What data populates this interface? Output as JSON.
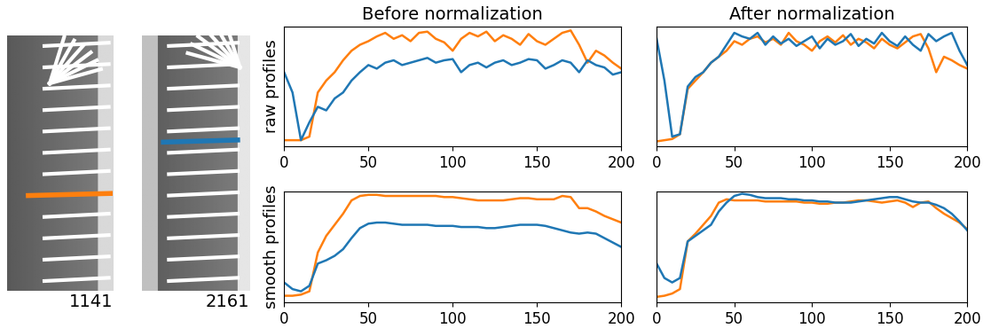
{
  "images": [
    {
      "label": "1141",
      "color": "#ff7f0e"
    },
    {
      "label": "2161",
      "color": "#1f77b4"
    }
  ],
  "chart_data": [
    {
      "type": "line",
      "title": "Before normalization",
      "y_label": "raw profiles",
      "x": [
        0,
        5,
        10,
        15,
        20,
        25,
        30,
        35,
        40,
        45,
        50,
        55,
        60,
        65,
        70,
        75,
        80,
        85,
        90,
        95,
        100,
        105,
        110,
        115,
        120,
        125,
        130,
        135,
        140,
        145,
        150,
        155,
        160,
        165,
        170,
        175,
        180,
        185,
        190,
        195,
        200
      ],
      "xlim": [
        0,
        200
      ],
      "xticks": [
        0,
        50,
        100,
        150,
        200
      ],
      "ylim": [
        0,
        1
      ],
      "tick_labels": "x",
      "series": [
        {
          "color": "#ff7f0e",
          "values": [
            0.05,
            0.05,
            0.05,
            0.08,
            0.45,
            0.55,
            0.62,
            0.72,
            0.8,
            0.85,
            0.88,
            0.92,
            0.95,
            0.9,
            0.93,
            0.88,
            0.95,
            0.96,
            0.9,
            0.87,
            0.8,
            0.9,
            0.95,
            0.92,
            0.96,
            0.88,
            0.93,
            0.9,
            0.85,
            0.94,
            0.88,
            0.85,
            0.9,
            0.95,
            0.97,
            0.85,
            0.7,
            0.8,
            0.76,
            0.7,
            0.65
          ]
        },
        {
          "color": "#1f77b4",
          "values": [
            0.62,
            0.45,
            0.05,
            0.2,
            0.33,
            0.3,
            0.4,
            0.45,
            0.55,
            0.62,
            0.68,
            0.65,
            0.7,
            0.72,
            0.68,
            0.7,
            0.72,
            0.74,
            0.7,
            0.72,
            0.73,
            0.62,
            0.68,
            0.7,
            0.66,
            0.7,
            0.72,
            0.68,
            0.7,
            0.73,
            0.72,
            0.65,
            0.68,
            0.72,
            0.7,
            0.62,
            0.72,
            0.68,
            0.66,
            0.6,
            0.62
          ]
        }
      ]
    },
    {
      "type": "line",
      "title": "After normalization",
      "x": [
        0,
        5,
        10,
        15,
        20,
        25,
        30,
        35,
        40,
        45,
        50,
        55,
        60,
        65,
        70,
        75,
        80,
        85,
        90,
        95,
        100,
        105,
        110,
        115,
        120,
        125,
        130,
        135,
        140,
        145,
        150,
        155,
        160,
        165,
        170,
        175,
        180,
        185,
        190,
        195,
        200
      ],
      "xlim": [
        0,
        200
      ],
      "xticks": [
        0,
        50,
        100,
        150,
        200
      ],
      "ylim": [
        0,
        1
      ],
      "tick_labels": "x",
      "series": [
        {
          "color": "#ff7f0e",
          "values": [
            0.04,
            0.05,
            0.06,
            0.1,
            0.48,
            0.55,
            0.62,
            0.7,
            0.75,
            0.8,
            0.88,
            0.85,
            0.9,
            0.92,
            0.87,
            0.9,
            0.85,
            0.95,
            0.88,
            0.85,
            0.8,
            0.88,
            0.92,
            0.87,
            0.93,
            0.85,
            0.9,
            0.87,
            0.82,
            0.9,
            0.85,
            0.82,
            0.87,
            0.92,
            0.94,
            0.82,
            0.62,
            0.75,
            0.72,
            0.68,
            0.65
          ]
        },
        {
          "color": "#1f77b4",
          "values": [
            0.9,
            0.55,
            0.08,
            0.1,
            0.5,
            0.58,
            0.62,
            0.7,
            0.75,
            0.85,
            0.95,
            0.92,
            0.9,
            0.95,
            0.85,
            0.92,
            0.86,
            0.9,
            0.84,
            0.88,
            0.92,
            0.82,
            0.9,
            0.85,
            0.88,
            0.94,
            0.84,
            0.9,
            0.86,
            0.95,
            0.88,
            0.84,
            0.92,
            0.85,
            0.8,
            0.94,
            0.88,
            0.92,
            0.95,
            0.8,
            0.68
          ]
        }
      ]
    },
    {
      "type": "line",
      "y_label": "smooth profiles",
      "x": [
        0,
        5,
        10,
        15,
        20,
        25,
        30,
        35,
        40,
        45,
        50,
        55,
        60,
        65,
        70,
        75,
        80,
        85,
        90,
        95,
        100,
        105,
        110,
        115,
        120,
        125,
        130,
        135,
        140,
        145,
        150,
        155,
        160,
        165,
        170,
        175,
        180,
        185,
        190,
        195,
        200
      ],
      "xlim": [
        0,
        200
      ],
      "xticks": [
        0,
        50,
        100,
        150,
        200
      ],
      "ylim": [
        0,
        1
      ],
      "tick_labels": "x",
      "series": [
        {
          "color": "#ff7f0e",
          "values": [
            0.06,
            0.06,
            0.07,
            0.1,
            0.45,
            0.6,
            0.7,
            0.8,
            0.92,
            0.96,
            0.97,
            0.97,
            0.96,
            0.96,
            0.96,
            0.96,
            0.96,
            0.96,
            0.96,
            0.95,
            0.95,
            0.94,
            0.93,
            0.92,
            0.92,
            0.92,
            0.92,
            0.93,
            0.94,
            0.94,
            0.93,
            0.93,
            0.93,
            0.96,
            0.95,
            0.85,
            0.85,
            0.82,
            0.78,
            0.75,
            0.72
          ]
        },
        {
          "color": "#1f77b4",
          "values": [
            0.18,
            0.12,
            0.1,
            0.15,
            0.35,
            0.38,
            0.42,
            0.48,
            0.58,
            0.67,
            0.71,
            0.72,
            0.72,
            0.71,
            0.7,
            0.7,
            0.7,
            0.7,
            0.69,
            0.69,
            0.69,
            0.68,
            0.68,
            0.68,
            0.67,
            0.67,
            0.68,
            0.69,
            0.7,
            0.7,
            0.7,
            0.69,
            0.67,
            0.65,
            0.63,
            0.62,
            0.63,
            0.62,
            0.58,
            0.54,
            0.5
          ]
        }
      ]
    },
    {
      "type": "line",
      "x": [
        0,
        5,
        10,
        15,
        20,
        25,
        30,
        35,
        40,
        45,
        50,
        55,
        60,
        65,
        70,
        75,
        80,
        85,
        90,
        95,
        100,
        105,
        110,
        115,
        120,
        125,
        130,
        135,
        140,
        145,
        150,
        155,
        160,
        165,
        170,
        175,
        180,
        185,
        190,
        195,
        200
      ],
      "xlim": [
        0,
        200
      ],
      "xticks": [
        0,
        50,
        100,
        150,
        200
      ],
      "ylim": [
        0,
        1
      ],
      "tick_labels": "x",
      "series": [
        {
          "color": "#ff7f0e",
          "values": [
            0.05,
            0.06,
            0.08,
            0.12,
            0.55,
            0.62,
            0.7,
            0.78,
            0.9,
            0.93,
            0.92,
            0.92,
            0.92,
            0.92,
            0.91,
            0.91,
            0.91,
            0.91,
            0.91,
            0.9,
            0.9,
            0.89,
            0.89,
            0.9,
            0.9,
            0.91,
            0.92,
            0.92,
            0.91,
            0.9,
            0.91,
            0.92,
            0.9,
            0.86,
            0.9,
            0.91,
            0.85,
            0.8,
            0.76,
            0.72,
            0.66
          ]
        },
        {
          "color": "#1f77b4",
          "values": [
            0.35,
            0.22,
            0.18,
            0.22,
            0.55,
            0.6,
            0.65,
            0.7,
            0.82,
            0.9,
            0.96,
            0.98,
            0.97,
            0.95,
            0.94,
            0.94,
            0.94,
            0.93,
            0.93,
            0.92,
            0.92,
            0.91,
            0.91,
            0.9,
            0.9,
            0.9,
            0.91,
            0.92,
            0.93,
            0.94,
            0.95,
            0.95,
            0.93,
            0.91,
            0.9,
            0.9,
            0.88,
            0.85,
            0.8,
            0.73,
            0.65
          ]
        }
      ]
    }
  ]
}
